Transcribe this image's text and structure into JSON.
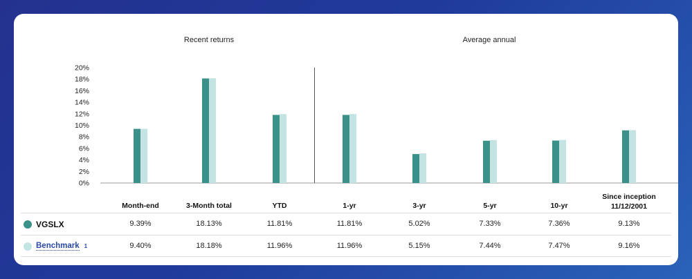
{
  "chart_data": {
    "type": "bar",
    "section_titles": [
      "Recent returns",
      "Average annual"
    ],
    "categories": [
      "Month-end",
      "3-Month total",
      "YTD",
      "1-yr",
      "3-yr",
      "5-yr",
      "10-yr",
      "Since inception 11/12/2001"
    ],
    "category_lines": [
      [
        "Month-end"
      ],
      [
        "3-Month total"
      ],
      [
        "YTD"
      ],
      [
        "1-yr"
      ],
      [
        "3-yr"
      ],
      [
        "5-yr"
      ],
      [
        "10-yr"
      ],
      [
        "Since inception",
        "11/12/2001"
      ]
    ],
    "series": [
      {
        "name": "VGSLX",
        "values": [
          9.39,
          18.13,
          11.81,
          11.81,
          5.02,
          7.33,
          7.36,
          9.13
        ],
        "color": "#3a9189"
      },
      {
        "name": "Benchmark",
        "values": [
          9.4,
          18.18,
          11.96,
          11.96,
          5.15,
          7.44,
          7.47,
          9.16
        ],
        "color": "#c4e3e3"
      }
    ],
    "ylim": [
      0,
      20
    ],
    "yticks": [
      "0%",
      "2%",
      "4%",
      "6%",
      "8%",
      "10%",
      "12%",
      "14%",
      "16%",
      "18%",
      "20%"
    ],
    "grid": false
  },
  "table": {
    "rows": [
      {
        "name": "VGSLX",
        "footnote": "",
        "values": [
          "9.39%",
          "18.13%",
          "11.81%",
          "11.81%",
          "5.02%",
          "7.33%",
          "7.36%",
          "9.13%"
        ]
      },
      {
        "name": "Benchmark",
        "footnote": "1",
        "values": [
          "9.40%",
          "18.18%",
          "11.96%",
          "11.96%",
          "5.15%",
          "7.44%",
          "7.47%",
          "9.16%"
        ]
      }
    ]
  }
}
